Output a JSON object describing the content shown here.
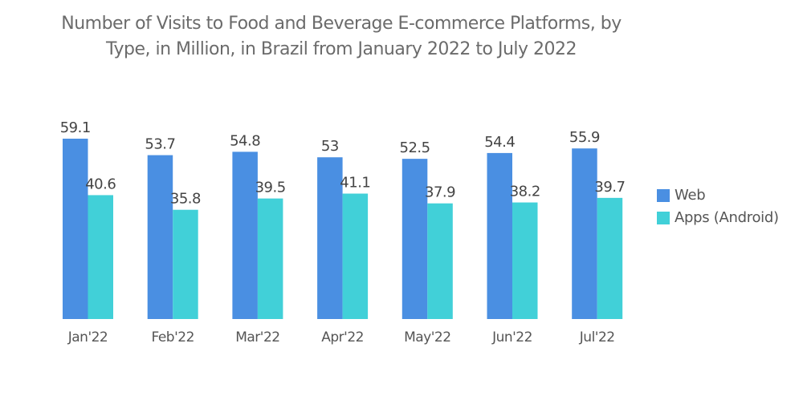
{
  "chart_data": {
    "type": "bar",
    "title": "Number of Visits to Food and Beverage E-commerce Platforms, by Type, in Million, in Brazil from January 2022 to July 2022",
    "title_lines": [
      "Number of Visits to Food and Beverage E-commerce Platforms, by",
      "Type, in Million, in Brazil from January 2022 to July 2022"
    ],
    "xlabel": "",
    "ylabel": "",
    "categories": [
      "Jan'22",
      "Feb'22",
      "Mar'22",
      "Apr'22",
      "May'22",
      "Jun'22",
      "Jul'22"
    ],
    "series": [
      {
        "name": "Web",
        "color": "#4a8fe2",
        "values": [
          59.1,
          53.7,
          54.8,
          53,
          52.5,
          54.4,
          55.9
        ]
      },
      {
        "name": "Apps (Android)",
        "color": "#41d0d8",
        "values": [
          40.6,
          35.8,
          39.5,
          41.1,
          37.9,
          38.2,
          39.7
        ]
      }
    ],
    "ylim": [
      0,
      59.1
    ],
    "grid": false,
    "legend_position": "right"
  }
}
